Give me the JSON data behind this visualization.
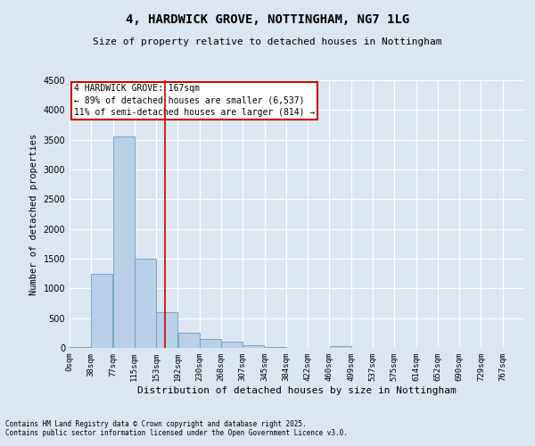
{
  "title": "4, HARDWICK GROVE, NOTTINGHAM, NG7 1LG",
  "subtitle": "Size of property relative to detached houses in Nottingham",
  "xlabel": "Distribution of detached houses by size in Nottingham",
  "ylabel": "Number of detached properties",
  "bar_color": "#b8d0e8",
  "bar_edge_color": "#6a9ec0",
  "background_color": "#dce6f0",
  "grid_color": "#ffffff",
  "bin_labels": [
    "0sqm",
    "38sqm",
    "77sqm",
    "115sqm",
    "153sqm",
    "192sqm",
    "230sqm",
    "268sqm",
    "307sqm",
    "345sqm",
    "384sqm",
    "422sqm",
    "460sqm",
    "499sqm",
    "537sqm",
    "575sqm",
    "614sqm",
    "652sqm",
    "690sqm",
    "729sqm",
    "767sqm"
  ],
  "values": [
    20,
    1250,
    3550,
    1500,
    600,
    250,
    150,
    100,
    50,
    20,
    5,
    2,
    30,
    2,
    0,
    0,
    0,
    0,
    0,
    0,
    0
  ],
  "ylim": [
    0,
    4500
  ],
  "yticks": [
    0,
    500,
    1000,
    1500,
    2000,
    2500,
    3000,
    3500,
    4000,
    4500
  ],
  "annotation_title": "4 HARDWICK GROVE: 167sqm",
  "annotation_line1": "← 89% of detached houses are smaller (6,537)",
  "annotation_line2": "11% of semi-detached houses are larger (814) →",
  "annotation_box_color": "#ffffff",
  "annotation_box_edge": "#cc0000",
  "line_color": "#cc0000",
  "property_line_bin": 4.4,
  "footer1": "Contains HM Land Registry data © Crown copyright and database right 2025.",
  "footer2": "Contains public sector information licensed under the Open Government Licence v3.0."
}
